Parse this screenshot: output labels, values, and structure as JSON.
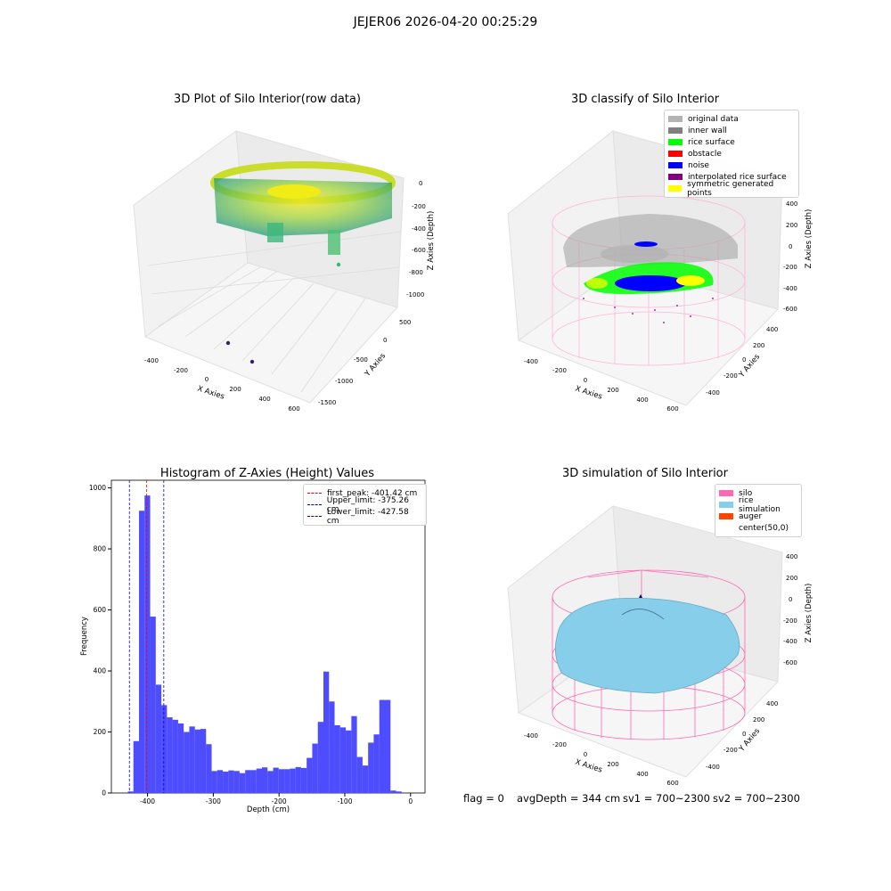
{
  "figure": {
    "suptitle": "JEJER06 2026-04-20 00:25:29",
    "footer": {
      "flag": "flag = 0",
      "avg_depth": "avgDepth = 344 cm",
      "sv1": "sv1 = 700~2300",
      "sv2": "sv2 = 700~2300"
    }
  },
  "colors": {
    "hist_bar": "#4d4dff",
    "first_peak": "#ff0000",
    "limits": "#0000cc",
    "silo_wire": "#ff69b4",
    "inner_wall": "#808080",
    "rice_surface": "#00ff00",
    "noise": "#0000ff",
    "rice_simulation": "#87ceeb"
  },
  "chart_data": [
    {
      "type": "scatter3d",
      "title": "3D Plot of Silo Interior(row data)",
      "xlabel": "X Axies",
      "ylabel": "Y Axies",
      "zlabel": "Z Axies (Depth)",
      "x_ticks": [
        "-400",
        "-200",
        "0",
        "200",
        "400",
        "600"
      ],
      "y_ticks": [
        "500",
        "0",
        "-500",
        "-1000",
        "-1500"
      ],
      "z_ticks": [
        "0",
        "-200",
        "-400",
        "-600",
        "-800",
        "-1000"
      ]
    },
    {
      "type": "scatter3d",
      "title": "3D classify of Silo Interior",
      "xlabel": "X Axies",
      "ylabel": "Y Axies",
      "zlabel": "Z Axies (Depth)",
      "x_ticks": [
        "-400",
        "-200",
        "0",
        "200",
        "400",
        "600"
      ],
      "y_ticks": [
        "400",
        "200",
        "0",
        "-200",
        "-400"
      ],
      "z_ticks": [
        "400",
        "200",
        "0",
        "-200",
        "-400",
        "-600"
      ],
      "legend": [
        {
          "label": "original data",
          "color": "#b3b3b3"
        },
        {
          "label": "inner wall",
          "color": "#808080"
        },
        {
          "label": "rice surface",
          "color": "#00ff00"
        },
        {
          "label": "obstacle",
          "color": "#ff0000"
        },
        {
          "label": "noise",
          "color": "#0000ff"
        },
        {
          "label": "interpolated rice surface",
          "color": "#800080"
        },
        {
          "label": "symmetric generated points",
          "color": "#ffff00"
        }
      ]
    },
    {
      "type": "bar",
      "title": "Histogram of Z-Axies (Height) Values",
      "xlabel": "Depth (cm)",
      "ylabel": "Frequency",
      "xlim": [
        -455,
        22
      ],
      "ylim": [
        0,
        1025
      ],
      "x_ticks": [
        -400,
        -300,
        -200,
        -100,
        0
      ],
      "y_ticks": [
        0,
        200,
        400,
        600,
        800,
        1000
      ],
      "bin_start": -430,
      "bin_width": 8.5,
      "values": [
        5,
        170,
        925,
        975,
        578,
        355,
        288,
        248,
        240,
        228,
        200,
        218,
        208,
        210,
        160,
        72,
        75,
        70,
        74,
        72,
        65,
        75,
        75,
        80,
        84,
        72,
        83,
        78,
        78,
        80,
        85,
        82,
        115,
        162,
        233,
        398,
        300,
        222,
        215,
        205,
        252,
        118,
        90,
        165,
        192,
        305,
        305,
        8,
        5
      ],
      "vlines": [
        {
          "label": "first_peak: -401.42 cm",
          "x": -401.42,
          "color": "#ff0000"
        },
        {
          "label": "Upper_limit: -375.26 cm",
          "x": -375.26,
          "color": "#0000cc"
        },
        {
          "label": "Lower_limit: -427.58 cm",
          "x": -427.58,
          "color": "#0000cc"
        }
      ]
    },
    {
      "type": "surface3d",
      "title": "3D simulation of Silo Interior",
      "xlabel": "X Axies",
      "ylabel": "Y Axies",
      "zlabel": "Z Axies (Depth)",
      "x_ticks": [
        "-400",
        "-200",
        "0",
        "200",
        "400",
        "600"
      ],
      "y_ticks": [
        "400",
        "200",
        "0",
        "-200",
        "-400"
      ],
      "z_ticks": [
        "400",
        "200",
        "0",
        "-200",
        "-400",
        "-600"
      ],
      "legend": [
        {
          "label": "silo",
          "color": "#ff69b4"
        },
        {
          "label": "rice simulation",
          "color": "#87ceeb"
        },
        {
          "label": "auger",
          "color": "#ff4500"
        },
        {
          "label": "center(50,0)",
          "color": ""
        }
      ]
    }
  ]
}
